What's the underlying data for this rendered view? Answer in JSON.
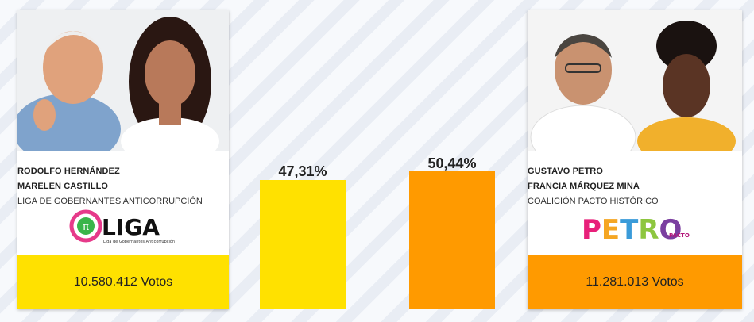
{
  "candidates": [
    {
      "president": "RODOLFO HERNÁNDEZ",
      "vice": "MARELEN CASTILLO",
      "party": "LIGA DE GOBERNANTES ANTICORRUPCIÓN",
      "logo_text": "LIGA",
      "logo_sub": "Liga de Gobernantes Anticorrupción",
      "votes": "10.580.412 Votos",
      "percent_label": "47,31%",
      "percent": 47.31,
      "color": "#ffe100"
    },
    {
      "president": "GUSTAVO PETRO",
      "vice": "FRANCIA MÁRQUEZ MINA",
      "party": "COALICIÓN PACTO HISTÓRICO",
      "logo_text": "PETRO",
      "logo_sub": "PACTO",
      "votes": "11.281.013 Votos",
      "percent_label": "50,44%",
      "percent": 50.44,
      "color": "#ff9a00"
    }
  ]
}
